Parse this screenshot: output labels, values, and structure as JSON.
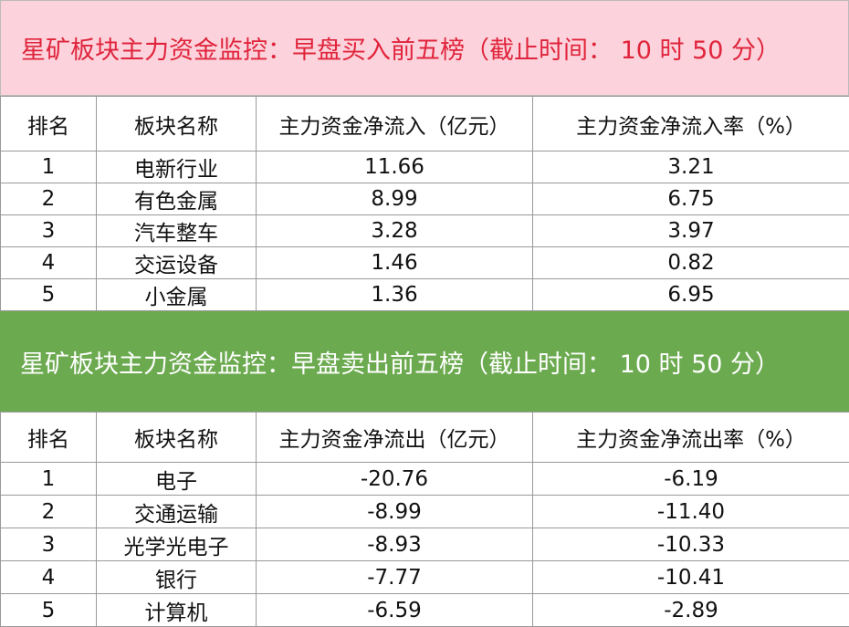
{
  "sections": [
    {
      "title": "星矿板块主力资金监控：早盘买入前五榜（截止时间： 10 时 50 分）",
      "headers": [
        "排名",
        "板块名称",
        "主力资金净流入（亿元）",
        "主力资金净流入率（%）"
      ],
      "rows": [
        [
          "1",
          "电新行业",
          "11.66",
          "3.21"
        ],
        [
          "2",
          "有色金属",
          "8.99",
          "6.75"
        ],
        [
          "3",
          "汽车整车",
          "3.28",
          "3.97"
        ],
        [
          "4",
          "交运设备",
          "1.46",
          "0.82"
        ],
        [
          "5",
          "小金属",
          "1.36",
          "6.95"
        ]
      ]
    },
    {
      "title": "星矿板块主力资金监控：早盘卖出前五榜（截止时间： 10 时 50 分）",
      "headers": [
        "排名",
        "板块名称",
        "主力资金净流出（亿元）",
        "主力资金净流出率（%）"
      ],
      "rows": [
        [
          "1",
          "电子",
          "-20.76",
          "-6.19"
        ],
        [
          "2",
          "交通运输",
          "-8.99",
          "-11.40"
        ],
        [
          "3",
          "光学光电子",
          "-8.93",
          "-10.33"
        ],
        [
          "4",
          "银行",
          "-7.77",
          "-10.41"
        ],
        [
          "5",
          "计算机",
          "-6.59",
          "-2.89"
        ]
      ]
    }
  ]
}
